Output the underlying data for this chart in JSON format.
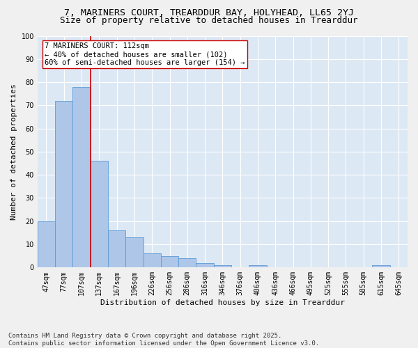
{
  "title": "7, MARINERS COURT, TREARDDUR BAY, HOLYHEAD, LL65 2YJ",
  "subtitle": "Size of property relative to detached houses in Trearddur",
  "xlabel": "Distribution of detached houses by size in Trearddur",
  "ylabel": "Number of detached properties",
  "categories": [
    "47sqm",
    "77sqm",
    "107sqm",
    "137sqm",
    "167sqm",
    "196sqm",
    "226sqm",
    "256sqm",
    "286sqm",
    "316sqm",
    "346sqm",
    "376sqm",
    "406sqm",
    "436sqm",
    "466sqm",
    "495sqm",
    "525sqm",
    "555sqm",
    "585sqm",
    "615sqm",
    "645sqm"
  ],
  "values": [
    20,
    72,
    78,
    46,
    16,
    13,
    6,
    5,
    4,
    2,
    1,
    0,
    1,
    0,
    0,
    0,
    0,
    0,
    0,
    1,
    0
  ],
  "bar_color": "#aec6e8",
  "bar_edge_color": "#5b9bd5",
  "red_line_index": 2,
  "red_line_color": "#cc0000",
  "annotation_text": "7 MARINERS COURT: 112sqm\n← 40% of detached houses are smaller (102)\n60% of semi-detached houses are larger (154) →",
  "annotation_box_color": "#ffffff",
  "annotation_box_edge": "#cc0000",
  "ylim": [
    0,
    100
  ],
  "yticks": [
    0,
    10,
    20,
    30,
    40,
    50,
    60,
    70,
    80,
    90,
    100
  ],
  "bg_color": "#dde8f5",
  "grid_color": "#ffffff",
  "footer": "Contains HM Land Registry data © Crown copyright and database right 2025.\nContains public sector information licensed under the Open Government Licence v3.0.",
  "title_fontsize": 9.5,
  "subtitle_fontsize": 9,
  "axis_label_fontsize": 8,
  "tick_fontsize": 7,
  "annotation_fontsize": 7.5,
  "footer_fontsize": 6.5
}
